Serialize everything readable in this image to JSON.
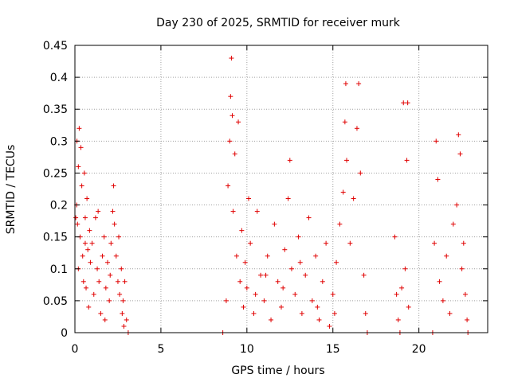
{
  "chart_data": {
    "type": "scatter",
    "title": "Day 230 of 2025, SRMTID for receiver murk",
    "xlabel": "GPS time / hours",
    "ylabel": "SRMTID / TECUs",
    "xlim": [
      0,
      24
    ],
    "ylim": [
      0,
      0.45
    ],
    "xticks": [
      0,
      5,
      10,
      15,
      20
    ],
    "yticks": [
      0,
      0.05,
      0.1,
      0.15,
      0.2,
      0.25,
      0.3,
      0.35,
      0.4,
      0.45
    ],
    "xtick_labels": [
      "0",
      "5",
      "10",
      "15",
      "20"
    ],
    "ytick_labels": [
      "0",
      "0.05",
      "0.1",
      "0.15",
      "0.2",
      "0.25",
      "0.3",
      "0.35",
      "0.4",
      "0.45"
    ],
    "grid": true,
    "marker": "+",
    "color": "#e00000",
    "series": [
      {
        "points": [
          [
            0.05,
            0.18
          ],
          [
            0.1,
            0.2
          ],
          [
            0.12,
            0.3
          ],
          [
            0.15,
            0.17
          ],
          [
            0.2,
            0.26
          ],
          [
            0.25,
            0.32
          ],
          [
            0.3,
            0.15
          ],
          [
            0.35,
            0.29
          ],
          [
            0.4,
            0.23
          ],
          [
            0.45,
            0.12
          ],
          [
            0.5,
            0.08
          ],
          [
            0.55,
            0.25
          ],
          [
            0.6,
            0.18
          ],
          [
            0.65,
            0.07
          ],
          [
            0.7,
            0.21
          ],
          [
            0.75,
            0.13
          ],
          [
            0.8,
            0.04
          ],
          [
            0.85,
            0.16
          ],
          [
            0.9,
            0.11
          ],
          [
            1.0,
            0.14
          ],
          [
            1.1,
            0.06
          ],
          [
            1.2,
            0.18
          ],
          [
            1.3,
            0.1
          ],
          [
            1.4,
            0.08
          ],
          [
            1.5,
            0.03
          ],
          [
            1.6,
            0.12
          ],
          [
            1.7,
            0.15
          ],
          [
            1.8,
            0.07
          ],
          [
            1.9,
            0.11
          ],
          [
            2.0,
            0.05
          ],
          [
            2.05,
            0.09
          ],
          [
            2.1,
            0.14
          ],
          [
            2.2,
            0.19
          ],
          [
            2.25,
            0.23
          ],
          [
            2.3,
            0.17
          ],
          [
            2.4,
            0.12
          ],
          [
            2.5,
            0.08
          ],
          [
            2.55,
            0.15
          ],
          [
            2.6,
            0.06
          ],
          [
            2.7,
            0.1
          ],
          [
            2.75,
            0.03
          ],
          [
            2.8,
            0.05
          ],
          [
            2.85,
            0.01
          ],
          [
            2.9,
            0.08
          ],
          [
            3.0,
            0.02
          ],
          [
            3.1,
            0.0
          ],
          [
            0.2,
            0.1
          ],
          [
            0.6,
            0.14
          ],
          [
            1.35,
            0.19
          ],
          [
            1.75,
            0.02
          ],
          [
            8.6,
            0.0
          ],
          [
            8.8,
            0.05
          ],
          [
            8.9,
            0.23
          ],
          [
            9.0,
            0.3
          ],
          [
            9.05,
            0.37
          ],
          [
            9.1,
            0.43
          ],
          [
            9.15,
            0.34
          ],
          [
            9.2,
            0.19
          ],
          [
            9.3,
            0.28
          ],
          [
            9.4,
            0.12
          ],
          [
            9.5,
            0.33
          ],
          [
            9.6,
            0.08
          ],
          [
            9.7,
            0.16
          ],
          [
            9.8,
            0.04
          ],
          [
            9.9,
            0.11
          ],
          [
            10.0,
            0.07
          ],
          [
            10.2,
            0.14
          ],
          [
            10.4,
            0.03
          ],
          [
            10.6,
            0.19
          ],
          [
            10.8,
            0.09
          ],
          [
            11.0,
            0.05
          ],
          [
            11.2,
            0.12
          ],
          [
            11.4,
            0.02
          ],
          [
            11.6,
            0.17
          ],
          [
            11.8,
            0.08
          ],
          [
            12.0,
            0.04
          ],
          [
            12.2,
            0.13
          ],
          [
            12.4,
            0.21
          ],
          [
            12.5,
            0.27
          ],
          [
            12.6,
            0.1
          ],
          [
            12.8,
            0.06
          ],
          [
            13.0,
            0.15
          ],
          [
            13.2,
            0.03
          ],
          [
            13.4,
            0.09
          ],
          [
            13.6,
            0.18
          ],
          [
            13.8,
            0.05
          ],
          [
            14.0,
            0.12
          ],
          [
            14.2,
            0.02
          ],
          [
            14.4,
            0.08
          ],
          [
            14.6,
            0.14
          ],
          [
            14.8,
            0.01
          ],
          [
            15.0,
            0.06
          ],
          [
            15.2,
            0.11
          ],
          [
            15.4,
            0.17
          ],
          [
            15.6,
            0.22
          ],
          [
            15.7,
            0.33
          ],
          [
            15.75,
            0.39
          ],
          [
            15.8,
            0.27
          ],
          [
            16.0,
            0.14
          ],
          [
            16.2,
            0.21
          ],
          [
            16.4,
            0.32
          ],
          [
            16.5,
            0.39
          ],
          [
            16.6,
            0.25
          ],
          [
            16.8,
            0.09
          ],
          [
            16.9,
            0.03
          ],
          [
            17.0,
            0.0
          ],
          [
            18.6,
            0.15
          ],
          [
            18.7,
            0.06
          ],
          [
            18.8,
            0.02
          ],
          [
            18.9,
            0.0
          ],
          [
            19.0,
            0.07
          ],
          [
            19.1,
            0.36
          ],
          [
            19.2,
            0.1
          ],
          [
            19.3,
            0.27
          ],
          [
            19.35,
            0.36
          ],
          [
            19.4,
            0.04
          ],
          [
            20.8,
            0.0
          ],
          [
            20.9,
            0.14
          ],
          [
            21.0,
            0.3
          ],
          [
            21.1,
            0.24
          ],
          [
            21.2,
            0.08
          ],
          [
            21.4,
            0.05
          ],
          [
            21.6,
            0.12
          ],
          [
            21.8,
            0.03
          ],
          [
            22.0,
            0.17
          ],
          [
            22.2,
            0.2
          ],
          [
            22.3,
            0.31
          ],
          [
            22.4,
            0.28
          ],
          [
            22.5,
            0.1
          ],
          [
            22.6,
            0.14
          ],
          [
            22.7,
            0.06
          ],
          [
            22.8,
            0.02
          ],
          [
            22.85,
            0.0
          ],
          [
            10.1,
            0.21
          ],
          [
            10.5,
            0.06
          ],
          [
            11.1,
            0.09
          ],
          [
            12.1,
            0.07
          ],
          [
            13.1,
            0.11
          ],
          [
            14.1,
            0.04
          ],
          [
            15.1,
            0.03
          ]
        ]
      }
    ]
  }
}
